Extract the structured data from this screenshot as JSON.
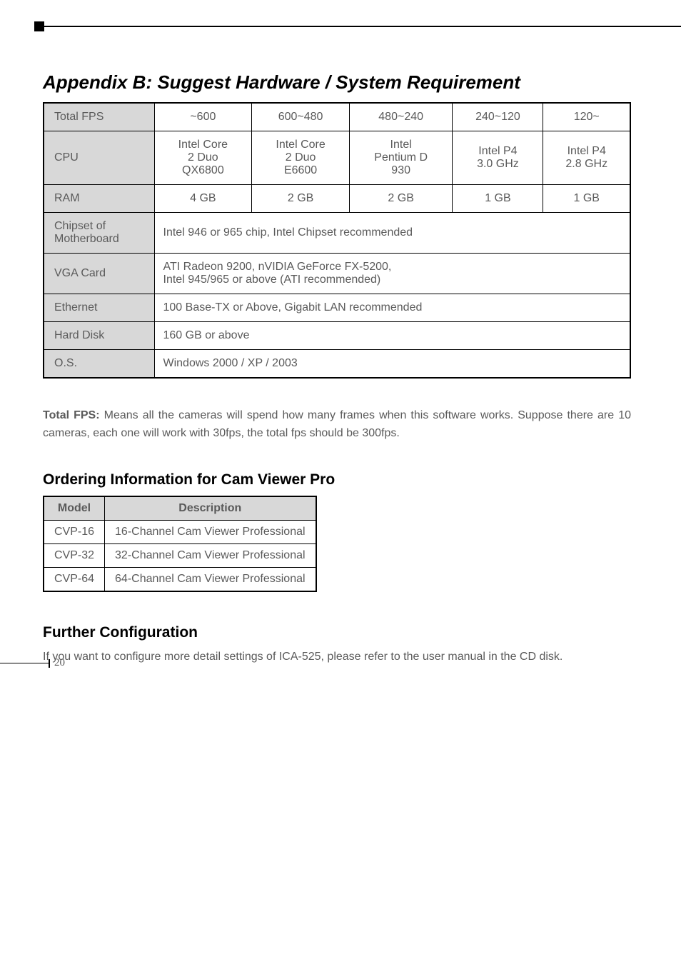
{
  "appendix_title": "Appendix B: Suggest Hardware / System Requirement",
  "hw_table": {
    "rows": [
      {
        "label": "Total FPS",
        "cells": [
          "~600",
          "600~480",
          "480~240",
          "240~120",
          "120~"
        ]
      },
      {
        "label": "CPU",
        "cells": [
          "Intel Core\n2 Duo\nQX6800",
          "Intel Core\n2 Duo\nE6600",
          "Intel\nPentium D\n930",
          "Intel P4\n3.0 GHz",
          "Intel P4\n2.8 GHz"
        ]
      },
      {
        "label": "RAM",
        "cells": [
          "4 GB",
          "2 GB",
          "2 GB",
          "1 GB",
          "1 GB"
        ]
      },
      {
        "label": "Chipset of\nMotherboard",
        "span": "Intel 946 or 965 chip, Intel Chipset recommended"
      },
      {
        "label": "VGA Card",
        "span": "ATI Radeon 9200, nVIDIA GeForce FX-5200,\nIntel 945/965 or above (ATI recommended)"
      },
      {
        "label": "Ethernet",
        "span": "100 Base-TX or Above, Gigabit LAN recommended"
      },
      {
        "label": "Hard Disk",
        "span": "160 GB or above"
      },
      {
        "label": "O.S.",
        "span": "Windows 2000 / XP / 2003"
      }
    ]
  },
  "total_fps_label": "Total FPS:",
  "total_fps_text": " Means all the cameras will spend how many frames when this software works. Suppose there are 10 cameras, each one will work with 30fps, the total fps should be 300fps.",
  "ordering_title": "Ordering Information for Cam Viewer Pro",
  "ordering": {
    "headers": [
      "Model",
      "Description"
    ],
    "rows": [
      [
        "CVP-16",
        "16-Channel Cam Viewer Professional"
      ],
      [
        "CVP-32",
        "32-Channel Cam Viewer Professional"
      ],
      [
        "CVP-64",
        "64-Channel Cam Viewer Professional"
      ]
    ]
  },
  "further_title": "Further Configuration",
  "further_text": "If you want to configure more detail settings of ICA-525, please refer to the user manual in the CD disk.",
  "page_number": "20"
}
